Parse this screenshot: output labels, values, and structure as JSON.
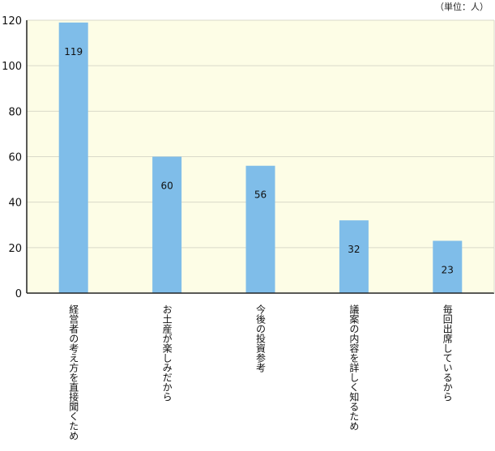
{
  "unit_label": "（単位：人）",
  "colors": {
    "plot_background": "#fdfde6",
    "bar": "#7fbde9",
    "grid": "#d9d9c9",
    "axis": "#222222"
  },
  "chart_data": {
    "type": "bar",
    "categories": [
      "経営者の考え方を直接聞くため",
      "お土産が楽しみだから",
      "今後の投資参考",
      "議案の内容を詳しく知るため",
      "毎回出席しているから"
    ],
    "values": [
      119,
      60,
      56,
      32,
      23
    ],
    "value_labels": [
      "119",
      "60",
      "56",
      "32",
      "23"
    ],
    "ylim": [
      0,
      120
    ],
    "yticks": [
      0,
      20,
      40,
      60,
      80,
      100,
      120
    ],
    "grid": true,
    "title": "",
    "xlabel": "",
    "ylabel": ""
  }
}
